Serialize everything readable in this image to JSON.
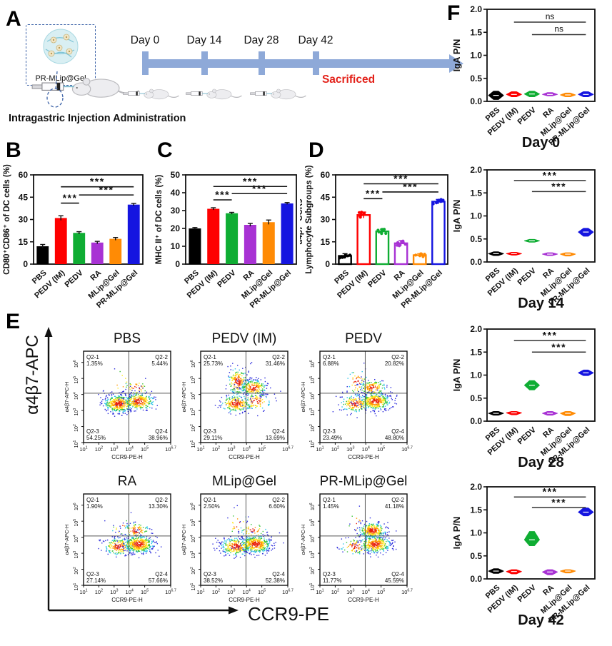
{
  "panels": {
    "a": {
      "letter": "A",
      "box_label": "PR-MLip@Gel",
      "caption": "Intragastric Injection Administration",
      "timeline_days": [
        "Day 0",
        "Day 14",
        "Day 28",
        "Day 42"
      ],
      "sacrificed_label": "Sacrificed",
      "timeline_color": "#8ea9d8",
      "sacrificed_color": "#e32119"
    },
    "b": {
      "letter": "B"
    },
    "c": {
      "letter": "C"
    },
    "d": {
      "letter": "D"
    },
    "e": {
      "letter": "E",
      "ylabel_big": "α4β7-APC",
      "xlabel_big": "CCR9-PE"
    },
    "f": {
      "letter": "F"
    }
  },
  "groups": [
    "PBS",
    "PEDV (IM)",
    "PEDV",
    "RA",
    "MLip@Gel",
    "PR-MLip@Gel"
  ],
  "group_colors": [
    "#000000",
    "#fe0000",
    "#0fad33",
    "#a832d4",
    "#ff8b05",
    "#1515e0"
  ],
  "chart_data": [
    {
      "panel": "B",
      "type": "bar",
      "ylabel_lines": [
        "CD80⁺CD86⁺ of DC cells (%)"
      ],
      "categories": [
        "PBS",
        "PEDV (IM)",
        "PEDV",
        "RA",
        "MLip@Gel",
        "PR-MLip@Gel"
      ],
      "values": [
        12,
        31,
        21,
        14.5,
        17,
        40
      ],
      "errors": [
        1.2,
        1.5,
        0.8,
        0.8,
        0.9,
        0.8
      ],
      "ylim": [
        0,
        60
      ],
      "yticks": [
        0,
        15,
        30,
        45,
        60
      ],
      "bar_style": "filled",
      "err_color": "black",
      "significance": [
        {
          "from": "PEDV (IM)",
          "to": "PEDV",
          "y": 41,
          "label": "***"
        },
        {
          "from": "PEDV",
          "to": "PR-MLip@Gel",
          "y": 46.5,
          "label": "***"
        },
        {
          "from": "PEDV (IM)",
          "to": "PR-MLip@Gel",
          "y": 52,
          "label": "***"
        }
      ]
    },
    {
      "panel": "C",
      "type": "bar",
      "ylabel_lines": [
        "MHC II⁺ of DC cells (%)"
      ],
      "categories": [
        "PBS",
        "PEDV (IM)",
        "PEDV",
        "RA",
        "MLip@Gel",
        "PR-MLip@Gel"
      ],
      "values": [
        20,
        31,
        28.5,
        22,
        23.5,
        34
      ],
      "errors": [
        0.5,
        0.6,
        0.5,
        0.8,
        1.2,
        0.5
      ],
      "ylim": [
        0,
        50
      ],
      "yticks": [
        0,
        10,
        20,
        30,
        40,
        50
      ],
      "bar_style": "filled",
      "err_color": "black",
      "significance": [
        {
          "from": "PEDV (IM)",
          "to": "PEDV",
          "y": 36,
          "label": "***"
        },
        {
          "from": "PEDV",
          "to": "PR-MLip@Gel",
          "y": 39.5,
          "label": "***"
        },
        {
          "from": "PEDV (IM)",
          "to": "PR-MLip@Gel",
          "y": 43.5,
          "label": "***"
        }
      ]
    },
    {
      "panel": "D",
      "type": "bar",
      "ylabel_lines": [
        "α4β7⁺CCR9⁺",
        "Lymphocyte Subgroups (%)"
      ],
      "categories": [
        "PBS",
        "PEDV (IM)",
        "PEDV",
        "RA",
        "MLip@Gel",
        "PR-MLip@Gel"
      ],
      "values": [
        5.5,
        33,
        22,
        14,
        6,
        42
      ],
      "errors": [
        1.5,
        2,
        1.5,
        1.8,
        1,
        1.5
      ],
      "ylim": [
        0,
        60
      ],
      "yticks": [
        0,
        15,
        30,
        45,
        60
      ],
      "bar_style": "outline_scatter",
      "err_color": "bar",
      "significance": [
        {
          "from": "PEDV (IM)",
          "to": "PEDV",
          "y": 44,
          "label": "***"
        },
        {
          "from": "PEDV",
          "to": "PR-MLip@Gel",
          "y": 48.5,
          "label": "***"
        },
        {
          "from": "PEDV (IM)",
          "to": "PR-MLip@Gel",
          "y": 54,
          "label": "***"
        }
      ]
    },
    {
      "panel": "E",
      "type": "scatter_flow",
      "xlabel_big": "CCR9-PE",
      "ylabel_big": "α4β7-APC",
      "axis_xlabel": "CCR9-PE-H",
      "axis_ylabel": "α4β7-APC-H",
      "x_tick_exponents": [
        "1",
        "2",
        "3",
        "4",
        "5",
        "6.7"
      ],
      "y_tick_exponents": [
        "1",
        "2",
        "3",
        "4",
        "5",
        "6"
      ],
      "plots": [
        {
          "title": "PBS",
          "quadrants": [
            {
              "label": "Q2-1",
              "pct": "1.35%"
            },
            {
              "label": "Q2-2",
              "pct": "5.44%"
            },
            {
              "label": "Q2-3",
              "pct": "54.25%"
            },
            {
              "label": "Q2-4",
              "pct": "38.96%"
            }
          ]
        },
        {
          "title": "PEDV (IM)",
          "quadrants": [
            {
              "label": "Q2-1",
              "pct": "25.73%"
            },
            {
              "label": "Q2-2",
              "pct": "31.46%"
            },
            {
              "label": "Q2-3",
              "pct": "29.11%"
            },
            {
              "label": "Q2-4",
              "pct": "13.69%"
            }
          ]
        },
        {
          "title": "PEDV",
          "quadrants": [
            {
              "label": "Q2-1",
              "pct": "6.88%"
            },
            {
              "label": "Q2-2",
              "pct": "20.82%"
            },
            {
              "label": "Q2-3",
              "pct": "23.49%"
            },
            {
              "label": "Q2-4",
              "pct": "48.80%"
            }
          ]
        },
        {
          "title": "RA",
          "quadrants": [
            {
              "label": "Q2-1",
              "pct": "1.90%"
            },
            {
              "label": "Q2-2",
              "pct": "13.30%"
            },
            {
              "label": "Q2-3",
              "pct": "27.14%"
            },
            {
              "label": "Q2-4",
              "pct": "57.66%"
            }
          ]
        },
        {
          "title": "MLip@Gel",
          "quadrants": [
            {
              "label": "Q2-1",
              "pct": "2.50%"
            },
            {
              "label": "Q2-2",
              "pct": "6.60%"
            },
            {
              "label": "Q2-3",
              "pct": "38.52%"
            },
            {
              "label": "Q2-4",
              "pct": "52.38%"
            }
          ]
        },
        {
          "title": "PR-MLip@Gel",
          "quadrants": [
            {
              "label": "Q2-1",
              "pct": "1.45%"
            },
            {
              "label": "Q2-2",
              "pct": "41.18%"
            },
            {
              "label": "Q2-3",
              "pct": "11.77%"
            },
            {
              "label": "Q2-4",
              "pct": "45.59%"
            }
          ]
        }
      ]
    },
    {
      "panel": "F",
      "type": "violin",
      "ylabel": "IgA P/N",
      "ylim": [
        0,
        2
      ],
      "yticks": [
        "0.0",
        "0.5",
        "1.0",
        "1.5",
        "2.0"
      ],
      "categories": [
        "PBS",
        "PEDV (IM)",
        "PEDV",
        "RA",
        "MLip@Gel",
        "PR-MLip@Gel"
      ],
      "plots": [
        {
          "title": "Day 0",
          "values": [
            0.13,
            0.15,
            0.16,
            0.15,
            0.14,
            0.15
          ],
          "spreads": [
            [
              0.04,
              0.22
            ],
            [
              0.1,
              0.21
            ],
            [
              0.1,
              0.22
            ],
            [
              0.12,
              0.19
            ],
            [
              0.1,
              0.18
            ],
            [
              0.1,
              0.21
            ]
          ],
          "significance": [
            {
              "from": "PEDV (IM)",
              "to": "PR-MLip@Gel",
              "y": 1.72,
              "label": "ns"
            },
            {
              "from": "PEDV",
              "to": "PR-MLip@Gel",
              "y": 1.45,
              "label": "ns"
            }
          ]
        },
        {
          "title": "Day 14",
          "values": [
            0.18,
            0.18,
            0.46,
            0.17,
            0.17,
            0.65
          ],
          "spreads": [
            [
              0.14,
              0.22
            ],
            [
              0.15,
              0.21
            ],
            [
              0.43,
              0.49
            ],
            [
              0.14,
              0.2
            ],
            [
              0.13,
              0.2
            ],
            [
              0.56,
              0.73
            ]
          ],
          "significance": [
            {
              "from": "PEDV (IM)",
              "to": "PR-MLip@Gel",
              "y": 1.77,
              "label": "***"
            },
            {
              "from": "PEDV",
              "to": "PR-MLip@Gel",
              "y": 1.53,
              "label": "***"
            }
          ]
        },
        {
          "title": "Day 28",
          "values": [
            0.17,
            0.18,
            0.78,
            0.17,
            0.17,
            1.05
          ],
          "spreads": [
            [
              0.13,
              0.21
            ],
            [
              0.14,
              0.21
            ],
            [
              0.68,
              0.88
            ],
            [
              0.13,
              0.21
            ],
            [
              0.12,
              0.21
            ],
            [
              0.99,
              1.11
            ]
          ],
          "significance": [
            {
              "from": "PEDV (IM)",
              "to": "PR-MLip@Gel",
              "y": 1.75,
              "label": "***"
            },
            {
              "from": "PEDV",
              "to": "PR-MLip@Gel",
              "y": 1.5,
              "label": "***"
            }
          ]
        },
        {
          "title": "Day 42",
          "values": [
            0.17,
            0.16,
            0.85,
            0.15,
            0.17,
            1.45
          ],
          "spreads": [
            [
              0.12,
              0.22
            ],
            [
              0.11,
              0.2
            ],
            [
              0.72,
              1.03
            ],
            [
              0.09,
              0.2
            ],
            [
              0.13,
              0.2
            ],
            [
              1.37,
              1.54
            ]
          ],
          "significance": [
            {
              "from": "PEDV (IM)",
              "to": "PR-MLip@Gel",
              "y": 1.78,
              "label": "***"
            },
            {
              "from": "PEDV",
              "to": "PR-MLip@Gel",
              "y": 1.55,
              "label": "***"
            }
          ]
        }
      ]
    }
  ]
}
